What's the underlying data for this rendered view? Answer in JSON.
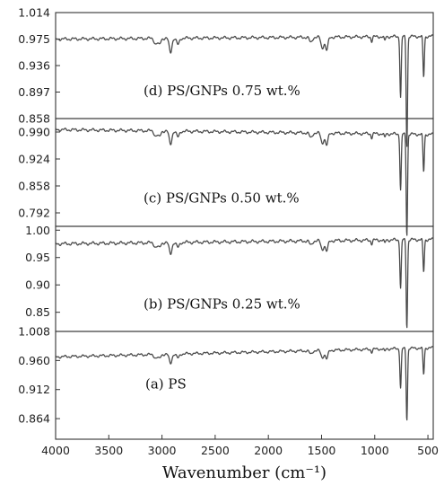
{
  "chart_data": {
    "type": "line",
    "xlabel": "Wavenumber (cm⁻¹)",
    "x_axis": {
      "range": [
        4000,
        450
      ],
      "reversed": true,
      "ticks": [
        4000,
        3500,
        3000,
        2500,
        2000,
        1500,
        1000,
        500
      ]
    },
    "grid": false,
    "panels": [
      {
        "label": "(d) PS/GNPs 0.75 wt.%",
        "ylim": [
          0.858,
          1.014
        ],
        "yticks": [
          "1.014",
          "0.975",
          "0.936",
          "0.897",
          "0.858"
        ],
        "baseline": 0.975,
        "slope": 0.004,
        "depth": 0.162,
        "ripple": 0.0015
      },
      {
        "label": "(c) PS/GNPs 0.50 wt.%",
        "ylim": [
          0.759,
          1.023
        ],
        "yticks": [
          "0.990",
          "0.924",
          "0.858",
          "0.792"
        ],
        "baseline": 0.996,
        "slope": -0.012,
        "depth": 0.248,
        "ripple": 0.0025
      },
      {
        "label": "(b) PS/GNPs 0.25 wt.%",
        "ylim": [
          0.815,
          1.007
        ],
        "yticks": [
          "1.00",
          "0.95",
          "0.90",
          "0.85"
        ],
        "baseline": 0.975,
        "slope": 0.008,
        "depth": 0.16,
        "ripple": 0.002
      },
      {
        "label": "(a) PS",
        "ylim": [
          0.83,
          1.008
        ],
        "yticks": [
          "1.008",
          "0.960",
          "0.912",
          "0.864"
        ],
        "baseline": 0.966,
        "slope": 0.015,
        "depth": 0.118,
        "ripple": 0.0015
      }
    ],
    "peaks": [
      {
        "x": 3060,
        "rel_depth": 0.05
      },
      {
        "x": 3026,
        "rel_depth": 0.06
      },
      {
        "x": 2920,
        "rel_depth": 0.13
      },
      {
        "x": 2850,
        "rel_depth": 0.06
      },
      {
        "x": 1601,
        "rel_depth": 0.05
      },
      {
        "x": 1493,
        "rel_depth": 0.1
      },
      {
        "x": 1452,
        "rel_depth": 0.12
      },
      {
        "x": 1028,
        "rel_depth": 0.04
      },
      {
        "x": 906,
        "rel_depth": 0.04
      },
      {
        "x": 757,
        "rel_depth": 0.55
      },
      {
        "x": 698,
        "rel_depth": 1.0
      },
      {
        "x": 540,
        "rel_depth": 0.37
      }
    ]
  }
}
